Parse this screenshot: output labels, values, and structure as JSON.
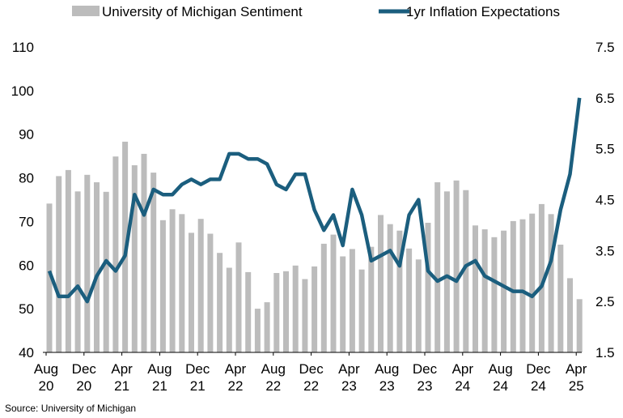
{
  "chart_data": {
    "type": "bar",
    "source": "Source: University of Michigan",
    "colors": {
      "bars": "#bcbcbc",
      "line": "#1b5e7e",
      "axis": "#000000"
    },
    "left_axis": {
      "ylim": [
        40,
        110
      ],
      "ticks": [
        40,
        50,
        60,
        70,
        80,
        90,
        100,
        110
      ]
    },
    "right_axis": {
      "ylim": [
        1.5,
        7.5
      ],
      "ticks": [
        "1.5",
        "2.5",
        "3.5",
        "4.5",
        "5.5",
        "6.5",
        "7.5"
      ]
    },
    "x_tick_labels": [
      [
        "Aug",
        "20"
      ],
      [
        "Dec",
        "20"
      ],
      [
        "Apr",
        "21"
      ],
      [
        "Aug",
        "21"
      ],
      [
        "Dec",
        "21"
      ],
      [
        "Apr",
        "22"
      ],
      [
        "Aug",
        "22"
      ],
      [
        "Dec",
        "22"
      ],
      [
        "Apr",
        "23"
      ],
      [
        "Aug",
        "23"
      ],
      [
        "Dec",
        "23"
      ],
      [
        "Apr",
        "24"
      ],
      [
        "Aug",
        "24"
      ],
      [
        "Dec",
        "24"
      ],
      [
        "Apr",
        "25"
      ]
    ],
    "series": [
      {
        "name": "University of Michigan Sentiment",
        "kind": "bar",
        "axis": "left",
        "values": [
          74.1,
          80.4,
          81.8,
          76.9,
          80.7,
          79.0,
          76.8,
          84.9,
          88.3,
          82.9,
          85.5,
          81.2,
          70.3,
          72.8,
          71.7,
          67.4,
          70.6,
          67.2,
          62.8,
          59.4,
          65.2,
          58.4,
          50.0,
          51.5,
          58.2,
          58.6,
          59.9,
          56.8,
          59.7,
          64.9,
          67.0,
          62.0,
          63.7,
          59.0,
          64.2,
          71.5,
          69.4,
          67.9,
          63.8,
          61.3,
          69.7,
          79.0,
          76.9,
          79.4,
          77.2,
          69.1,
          68.2,
          66.4,
          67.9,
          70.1,
          70.5,
          71.8,
          74.0,
          71.7,
          64.7,
          57.0,
          52.2
        ]
      },
      {
        "name": "1yr Inflation Expectations",
        "kind": "line",
        "axis": "right",
        "values": [
          3.1,
          2.6,
          2.6,
          2.8,
          2.5,
          3.0,
          3.3,
          3.1,
          3.4,
          4.6,
          4.2,
          4.7,
          4.6,
          4.6,
          4.8,
          4.9,
          4.8,
          4.9,
          4.9,
          5.4,
          5.4,
          5.3,
          5.3,
          5.2,
          4.8,
          4.7,
          5.0,
          5.0,
          4.3,
          3.9,
          4.2,
          3.6,
          4.7,
          4.2,
          3.3,
          3.4,
          3.5,
          3.2,
          4.2,
          4.5,
          3.1,
          2.9,
          3.0,
          2.9,
          3.2,
          3.3,
          3.0,
          2.9,
          2.8,
          2.7,
          2.7,
          2.6,
          2.8,
          3.3,
          4.3,
          5.0,
          6.5
        ]
      }
    ]
  }
}
